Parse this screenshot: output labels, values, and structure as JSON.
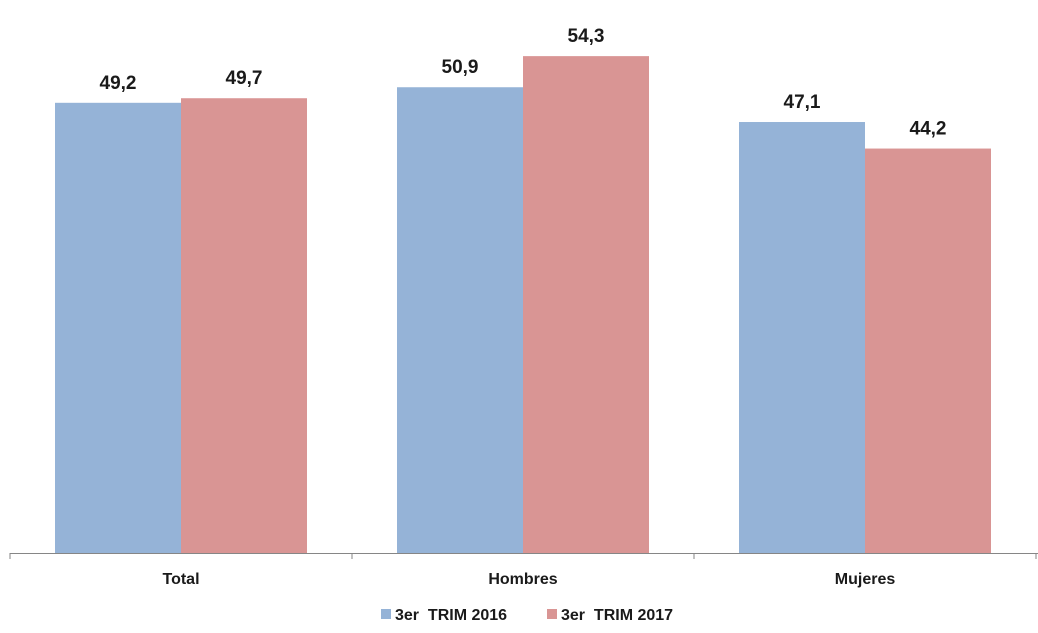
{
  "chart_data": {
    "type": "bar",
    "categories": [
      "Total",
      "Hombres",
      "Mujeres"
    ],
    "series": [
      {
        "name": "3er  TRIM 2016",
        "values": [
          49.2,
          50.9,
          47.1
        ],
        "labels": [
          "49,2",
          "50,9",
          "47,1"
        ],
        "color": "#95B3D7"
      },
      {
        "name": "3er  TRIM 2017",
        "values": [
          49.7,
          54.3,
          44.2
        ],
        "labels": [
          "49,7",
          "54,3",
          "44,2"
        ],
        "color": "#D99594"
      }
    ],
    "title": "",
    "xlabel": "",
    "ylabel": "",
    "ylim": [
      0,
      56.5
    ],
    "grid": false,
    "legend": "bottom-center"
  }
}
